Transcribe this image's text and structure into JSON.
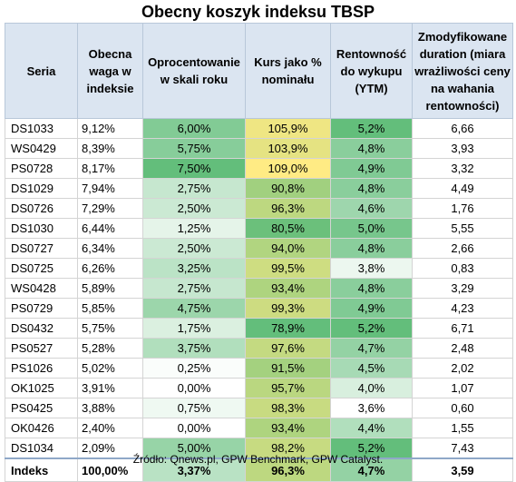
{
  "title": "Obecny koszyk indeksu TBSP",
  "headers": {
    "seria": "Seria",
    "waga": "Obecna waga w indeksie",
    "opr": "Oprocentowanie w skali roku",
    "kurs": "Kurs jako % nominału",
    "ytm": "Rentowność do wykupu (YTM)",
    "dur": "Zmodyfikowane duration (miara wrażliwości ceny na wahania rentowności)"
  },
  "rows": [
    {
      "seria": "DS1033",
      "waga": "9,12%",
      "opr": "6,00%",
      "kurs": "105,9%",
      "ytm": "5,2%",
      "dur": "6,66"
    },
    {
      "seria": "WS0429",
      "waga": "8,39%",
      "opr": "5,75%",
      "kurs": "103,9%",
      "ytm": "4,8%",
      "dur": "3,93"
    },
    {
      "seria": "PS0728",
      "waga": "8,17%",
      "opr": "7,50%",
      "kurs": "109,0%",
      "ytm": "4,9%",
      "dur": "3,32"
    },
    {
      "seria": "DS1029",
      "waga": "7,94%",
      "opr": "2,75%",
      "kurs": "90,8%",
      "ytm": "4,8%",
      "dur": "4,49"
    },
    {
      "seria": "DS0726",
      "waga": "7,29%",
      "opr": "2,50%",
      "kurs": "96,3%",
      "ytm": "4,6%",
      "dur": "1,76"
    },
    {
      "seria": "DS1030",
      "waga": "6,44%",
      "opr": "1,25%",
      "kurs": "80,5%",
      "ytm": "5,0%",
      "dur": "5,55"
    },
    {
      "seria": "DS0727",
      "waga": "6,34%",
      "opr": "2,50%",
      "kurs": "94,0%",
      "ytm": "4,8%",
      "dur": "2,66"
    },
    {
      "seria": "DS0725",
      "waga": "6,26%",
      "opr": "3,25%",
      "kurs": "99,5%",
      "ytm": "3,8%",
      "dur": "0,83"
    },
    {
      "seria": "WS0428",
      "waga": "5,89%",
      "opr": "2,75%",
      "kurs": "93,4%",
      "ytm": "4,8%",
      "dur": "3,29"
    },
    {
      "seria": "PS0729",
      "waga": "5,85%",
      "opr": "4,75%",
      "kurs": "99,3%",
      "ytm": "4,9%",
      "dur": "4,23"
    },
    {
      "seria": "DS0432",
      "waga": "5,75%",
      "opr": "1,75%",
      "kurs": "78,9%",
      "ytm": "5,2%",
      "dur": "6,71"
    },
    {
      "seria": "PS0527",
      "waga": "5,28%",
      "opr": "3,75%",
      "kurs": "97,6%",
      "ytm": "4,7%",
      "dur": "2,48"
    },
    {
      "seria": "PS1026",
      "waga": "5,02%",
      "opr": "0,25%",
      "kurs": "91,5%",
      "ytm": "4,5%",
      "dur": "2,02"
    },
    {
      "seria": "OK1025",
      "waga": "3,91%",
      "opr": "0,00%",
      "kurs": "95,7%",
      "ytm": "4,0%",
      "dur": "1,07"
    },
    {
      "seria": "PS0425",
      "waga": "3,88%",
      "opr": "0,75%",
      "kurs": "98,3%",
      "ytm": "3,6%",
      "dur": "0,60"
    },
    {
      "seria": "OK0426",
      "waga": "2,40%",
      "opr": "0,00%",
      "kurs": "93,4%",
      "ytm": "4,4%",
      "dur": "1,55"
    },
    {
      "seria": "DS1034",
      "waga": "2,09%",
      "opr": "5,00%",
      "kurs": "98,2%",
      "ytm": "5,2%",
      "dur": "7,43"
    }
  ],
  "total": {
    "seria": "Indeks",
    "waga": "100,00%",
    "opr": "3,37%",
    "kurs": "96,3%",
    "ytm": "4,7%",
    "dur": "3,59"
  },
  "source": "Źródło: Qnews.pl, GPW Benchmark, GPW Catalyst.",
  "colors": {
    "header_bg": "#dbe5f1",
    "scale_low": "#ffffff",
    "scale_high_green": "#63be7b",
    "scale_mid_yellow": "#ffeb84"
  }
}
